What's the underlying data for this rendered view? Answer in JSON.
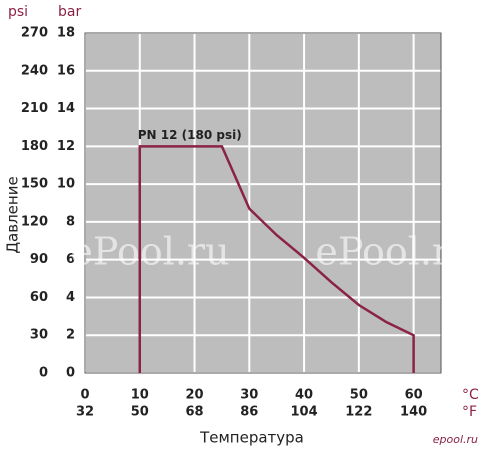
{
  "chart_data": {
    "type": "line",
    "y_label": "Давление",
    "x_label": "Температура",
    "y_unit": "bar",
    "y2_unit": "psi",
    "x_unit": "°C",
    "x2_unit": "°F",
    "annotation": "PN 12 (180 psi)",
    "watermarks": [
      "ePool.ru",
      "ePool.ru"
    ],
    "logo": "epool.ru",
    "xlim": [
      0,
      65
    ],
    "xticks": [
      0,
      10,
      20,
      30,
      40,
      50,
      60
    ],
    "x2lim": [
      32,
      149
    ],
    "x2ticks": [
      32,
      50,
      68,
      86,
      104,
      122,
      140
    ],
    "ylim": [
      0,
      18
    ],
    "yticks": [
      0,
      2,
      4,
      6,
      8,
      10,
      12,
      14,
      16,
      18
    ],
    "y2lim": [
      0,
      270
    ],
    "y2ticks": [
      0,
      30,
      60,
      90,
      120,
      150,
      180,
      210,
      240,
      270
    ],
    "grid": true,
    "background": "#bdbdbd",
    "series": [
      {
        "color": "#8b2346",
        "x": [
          10,
          10,
          25,
          30,
          35,
          40,
          45,
          50,
          55,
          60,
          60
        ],
        "values": [
          0,
          12,
          12,
          8.7,
          7.3,
          6.1,
          4.8,
          3.6,
          2.7,
          2,
          0
        ]
      }
    ]
  }
}
